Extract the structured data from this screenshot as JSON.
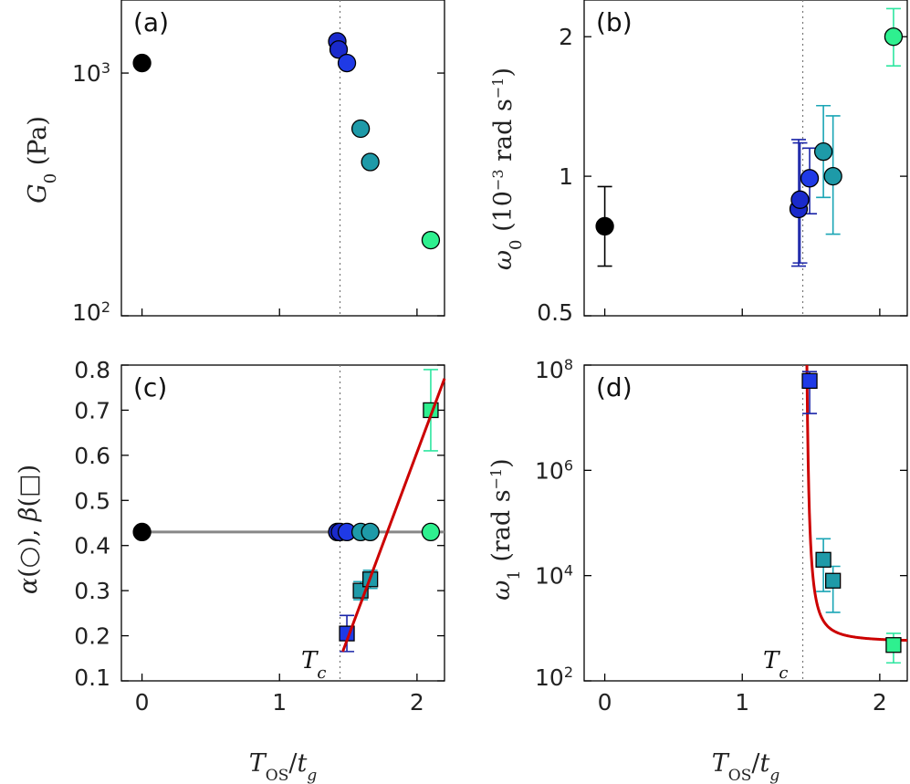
{
  "colors": {
    "black": "#000000",
    "blue_dark": "#1a2acc",
    "blue": "#1f3ae6",
    "teal": "#1e9aa8",
    "green": "#2ef08f",
    "fit_red": "#cc0000",
    "fit_gray": "#888888",
    "eb_dark": "#1a24a8",
    "eb_teal": "#1aa5b5",
    "eb_green": "#2ee6a0"
  },
  "chart_data": [
    {
      "panel": "a",
      "type": "scatter",
      "label": "(a)",
      "ylabel": "G_0 (Pa)",
      "yscale": "log",
      "ylim": [
        100,
        2000
      ],
      "xlim": [
        -0.15,
        2.2
      ],
      "yticks": [
        {
          "value": 100,
          "base": "10",
          "exp": "2"
        },
        {
          "value": 1000,
          "base": "10",
          "exp": "3"
        }
      ],
      "vline": 1.44,
      "points": [
        {
          "x": 0,
          "y": 1100,
          "color": "black"
        },
        {
          "x": 1.42,
          "y": 1350,
          "color": "blue_dark"
        },
        {
          "x": 1.43,
          "y": 1250,
          "color": "blue_dark"
        },
        {
          "x": 1.49,
          "y": 1100,
          "color": "blue"
        },
        {
          "x": 1.59,
          "y": 590,
          "color": "teal"
        },
        {
          "x": 1.66,
          "y": 430,
          "color": "teal"
        },
        {
          "x": 2.1,
          "y": 205,
          "color": "green"
        }
      ]
    },
    {
      "panel": "b",
      "type": "scatter",
      "label": "(b)",
      "ylabel": "ω_0 (10^-3 rad s^-1)",
      "yscale": "log",
      "ylim": [
        0.5,
        2.4
      ],
      "xlim": [
        -0.15,
        2.2
      ],
      "yticks": [
        {
          "value": 0.5,
          "text": "0.5"
        },
        {
          "value": 1,
          "text": "1"
        },
        {
          "value": 2,
          "text": "2"
        }
      ],
      "vline": 1.44,
      "points": [
        {
          "x": 0,
          "y": 0.78,
          "err_lo": 0.64,
          "err_hi": 0.95,
          "color": "black",
          "err_color": "black"
        },
        {
          "x": 1.41,
          "y": 0.85,
          "err_lo": 0.64,
          "err_hi": 1.2,
          "color": "blue_dark",
          "err_color": "eb_dark"
        },
        {
          "x": 1.42,
          "y": 0.89,
          "err_lo": 0.65,
          "err_hi": 1.18,
          "color": "blue_dark",
          "err_color": "eb_dark"
        },
        {
          "x": 1.49,
          "y": 0.99,
          "err_lo": 0.83,
          "err_hi": 1.15,
          "color": "blue",
          "err_color": "eb_dark"
        },
        {
          "x": 1.59,
          "y": 1.13,
          "err_lo": 0.9,
          "err_hi": 1.42,
          "color": "teal",
          "err_color": "eb_teal"
        },
        {
          "x": 1.66,
          "y": 1.0,
          "err_lo": 0.75,
          "err_hi": 1.35,
          "color": "teal",
          "err_color": "eb_teal"
        },
        {
          "x": 2.1,
          "y": 2.0,
          "err_lo": 1.73,
          "err_hi": 2.3,
          "color": "green",
          "err_color": "eb_green"
        }
      ]
    },
    {
      "panel": "c",
      "type": "scatter",
      "label": "(c)",
      "ylabel": "α(○), β(□)",
      "yscale": "linear",
      "ylim": [
        0.1,
        0.8
      ],
      "xlim": [
        -0.15,
        2.2
      ],
      "yticks": [
        0.1,
        0.2,
        0.3,
        0.4,
        0.5,
        0.6,
        0.7,
        0.8
      ],
      "xticks": [
        0,
        1,
        2
      ],
      "xlabel": "T_OS/t_g",
      "vline": 1.44,
      "annotation": "T_c",
      "alpha_points": [
        {
          "x": 0,
          "y": 0.43,
          "color": "black"
        },
        {
          "x": 1.42,
          "y": 0.43,
          "color": "blue_dark"
        },
        {
          "x": 1.44,
          "y": 0.43,
          "color": "blue_dark"
        },
        {
          "x": 1.49,
          "y": 0.43,
          "color": "blue"
        },
        {
          "x": 1.59,
          "y": 0.43,
          "color": "teal"
        },
        {
          "x": 1.66,
          "y": 0.43,
          "color": "teal"
        },
        {
          "x": 2.1,
          "y": 0.43,
          "color": "green"
        }
      ],
      "alpha_line": {
        "x": [
          0,
          2.2
        ],
        "y": [
          0.43,
          0.43
        ],
        "color": "fit_gray"
      },
      "beta_points": [
        {
          "x": 1.49,
          "y": 0.205,
          "err_lo": 0.165,
          "err_hi": 0.245,
          "color": "blue",
          "err_color": "eb_dark"
        },
        {
          "x": 1.59,
          "y": 0.3,
          "err_lo": 0.28,
          "err_hi": 0.32,
          "color": "teal",
          "err_color": "eb_teal"
        },
        {
          "x": 1.66,
          "y": 0.325,
          "err_lo": 0.305,
          "err_hi": 0.345,
          "color": "teal",
          "err_color": "eb_teal"
        },
        {
          "x": 2.1,
          "y": 0.7,
          "err_lo": 0.61,
          "err_hi": 0.79,
          "color": "green",
          "err_color": "eb_green"
        }
      ],
      "beta_fit": {
        "x": [
          1.46,
          2.2
        ],
        "y": [
          0.165,
          0.77
        ],
        "color": "fit_red"
      }
    },
    {
      "panel": "d",
      "type": "scatter",
      "label": "(d)",
      "ylabel": "ω_1 (rad s^-1)",
      "yscale": "log",
      "ylim": [
        100,
        100000000
      ],
      "xlim": [
        -0.15,
        2.2
      ],
      "yticks": [
        {
          "value": 100,
          "base": "10",
          "exp": "2"
        },
        {
          "value": 10000,
          "base": "10",
          "exp": "4"
        },
        {
          "value": 1000000,
          "base": "10",
          "exp": "6"
        },
        {
          "value": 100000000,
          "base": "10",
          "exp": "8"
        }
      ],
      "xticks": [
        0,
        1,
        2
      ],
      "xlabel": "T_OS/t_g",
      "vline": 1.44,
      "annotation": "T_c",
      "points": [
        {
          "x": 1.49,
          "y": 50000000,
          "err_lo": 12000000,
          "err_hi": 75000000,
          "color": "blue",
          "err_color": "eb_dark"
        },
        {
          "x": 1.59,
          "y": 20000,
          "err_lo": 5000,
          "err_hi": 50000,
          "color": "teal",
          "err_color": "eb_teal"
        },
        {
          "x": 1.66,
          "y": 8000,
          "err_lo": 2000,
          "err_hi": 15000,
          "color": "teal",
          "err_color": "eb_teal"
        },
        {
          "x": 2.1,
          "y": 480,
          "err_lo": 220,
          "err_hi": 800,
          "color": "green",
          "err_color": "eb_green"
        }
      ],
      "fit": {
        "x_start": 1.47,
        "x_end": 2.2,
        "xc": 1.44,
        "floor": 550,
        "color": "fit_red"
      }
    }
  ]
}
